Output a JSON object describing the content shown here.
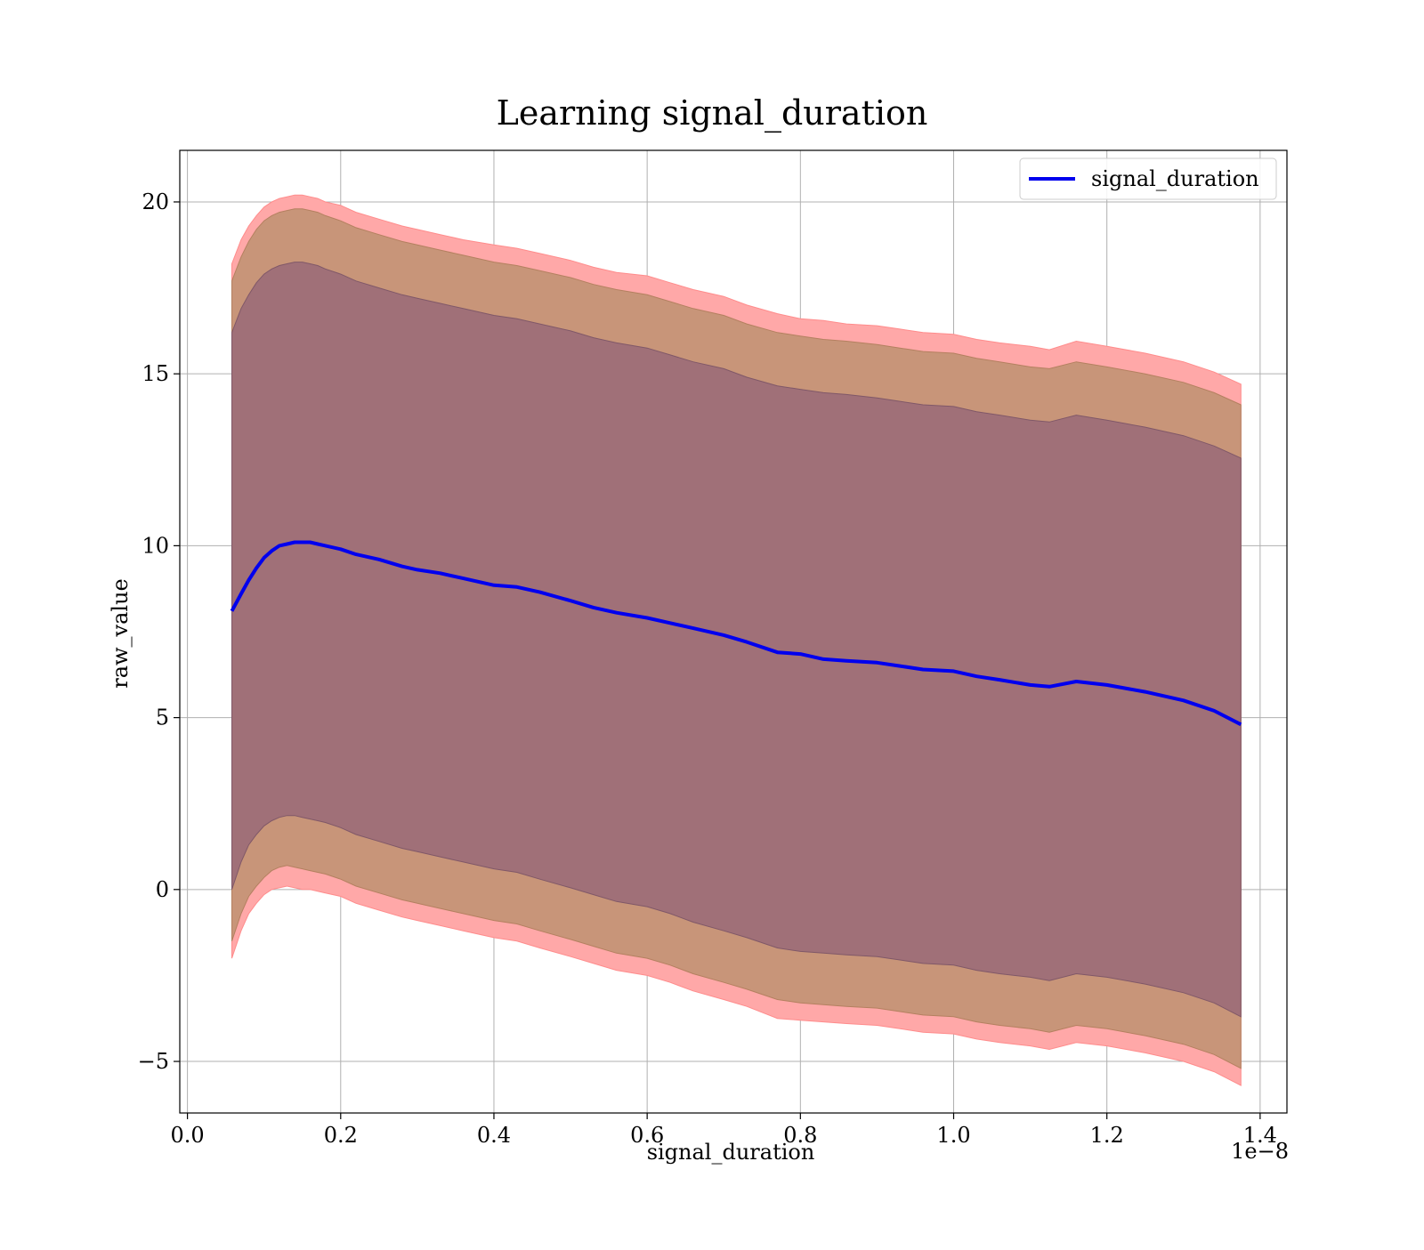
{
  "chart_data": {
    "type": "area",
    "title": "Learning signal_duration",
    "xlabel": "signal_duration",
    "ylabel": "raw_value",
    "x_offset_label": "1e−8",
    "x_scale": 1e-08,
    "xlim": [
      -0.01,
      1.435
    ],
    "ylim": [
      -6.5,
      21.5
    ],
    "grid": true,
    "legend": {
      "position": "top-right",
      "entries": [
        "signal_duration"
      ]
    },
    "x_ticks": [
      {
        "value": 0.0,
        "label": "0.0"
      },
      {
        "value": 0.2,
        "label": "0.2"
      },
      {
        "value": 0.4,
        "label": "0.4"
      },
      {
        "value": 0.6,
        "label": "0.6"
      },
      {
        "value": 0.8,
        "label": "0.8"
      },
      {
        "value": 1.0,
        "label": "1.0"
      },
      {
        "value": 1.2,
        "label": "1.2"
      },
      {
        "value": 1.4,
        "label": "1.4"
      }
    ],
    "y_ticks": [
      {
        "value": -5,
        "label": "−5"
      },
      {
        "value": 0,
        "label": "0"
      },
      {
        "value": 5,
        "label": "5"
      },
      {
        "value": 10,
        "label": "10"
      },
      {
        "value": 15,
        "label": "15"
      },
      {
        "value": 20,
        "label": "20"
      }
    ],
    "colors": {
      "line": "#0000ee",
      "outer_band": "#ffa8a8",
      "middle_band": "#c89579",
      "inner_band": "#a07078",
      "grid": "#b0b0b0"
    },
    "x": [
      0.058,
      0.07,
      0.08,
      0.09,
      0.1,
      0.11,
      0.12,
      0.13,
      0.14,
      0.15,
      0.16,
      0.17,
      0.18,
      0.2,
      0.22,
      0.25,
      0.28,
      0.3,
      0.33,
      0.36,
      0.4,
      0.43,
      0.46,
      0.5,
      0.53,
      0.56,
      0.6,
      0.63,
      0.66,
      0.7,
      0.73,
      0.77,
      0.8,
      0.83,
      0.86,
      0.9,
      0.93,
      0.96,
      1.0,
      1.03,
      1.06,
      1.1,
      1.125,
      1.16,
      1.2,
      1.25,
      1.3,
      1.34,
      1.375
    ],
    "series": [
      {
        "name": "signal_duration",
        "values": [
          8.1,
          8.6,
          9.0,
          9.35,
          9.65,
          9.85,
          10.0,
          10.05,
          10.1,
          10.1,
          10.1,
          10.05,
          10.0,
          9.9,
          9.75,
          9.6,
          9.4,
          9.3,
          9.2,
          9.05,
          8.85,
          8.8,
          8.65,
          8.4,
          8.2,
          8.05,
          7.9,
          7.75,
          7.6,
          7.4,
          7.2,
          6.9,
          6.85,
          6.7,
          6.65,
          6.6,
          6.5,
          6.4,
          6.35,
          6.2,
          6.1,
          5.95,
          5.9,
          6.05,
          5.95,
          5.75,
          5.5,
          5.2,
          4.8
        ]
      }
    ],
    "bands": [
      {
        "upper": [
          18.2,
          18.9,
          19.3,
          19.6,
          19.85,
          20.0,
          20.1,
          20.15,
          20.2,
          20.2,
          20.15,
          20.1,
          20.0,
          19.9,
          19.7,
          19.5,
          19.3,
          19.2,
          19.05,
          18.9,
          18.75,
          18.65,
          18.5,
          18.3,
          18.1,
          17.95,
          17.85,
          17.65,
          17.45,
          17.25,
          17.0,
          16.75,
          16.6,
          16.55,
          16.45,
          16.4,
          16.3,
          16.2,
          16.15,
          16.0,
          15.9,
          15.8,
          15.7,
          15.95,
          15.8,
          15.6,
          15.35,
          15.05,
          14.7
        ],
        "lower": [
          -2.0,
          -1.2,
          -0.7,
          -0.4,
          -0.15,
          0.0,
          0.05,
          0.1,
          0.05,
          0.0,
          0.0,
          -0.05,
          -0.1,
          -0.2,
          -0.4,
          -0.6,
          -0.8,
          -0.9,
          -1.05,
          -1.2,
          -1.4,
          -1.5,
          -1.7,
          -1.95,
          -2.15,
          -2.35,
          -2.5,
          -2.7,
          -2.95,
          -3.2,
          -3.4,
          -3.75,
          -3.8,
          -3.85,
          -3.9,
          -3.95,
          -4.05,
          -4.15,
          -4.2,
          -4.35,
          -4.45,
          -4.55,
          -4.65,
          -4.45,
          -4.55,
          -4.75,
          -5.0,
          -5.3,
          -5.7
        ]
      },
      {
        "upper": [
          17.7,
          18.4,
          18.85,
          19.2,
          19.45,
          19.6,
          19.7,
          19.75,
          19.8,
          19.8,
          19.75,
          19.7,
          19.6,
          19.45,
          19.25,
          19.05,
          18.85,
          18.75,
          18.6,
          18.45,
          18.25,
          18.15,
          18.0,
          17.8,
          17.6,
          17.45,
          17.3,
          17.1,
          16.9,
          16.7,
          16.45,
          16.2,
          16.1,
          16.0,
          15.95,
          15.85,
          15.75,
          15.65,
          15.6,
          15.45,
          15.35,
          15.2,
          15.15,
          15.35,
          15.2,
          15.0,
          14.75,
          14.45,
          14.1
        ],
        "lower": [
          -1.5,
          -0.7,
          -0.2,
          0.1,
          0.35,
          0.55,
          0.65,
          0.7,
          0.65,
          0.6,
          0.55,
          0.5,
          0.45,
          0.3,
          0.1,
          -0.1,
          -0.3,
          -0.4,
          -0.55,
          -0.7,
          -0.9,
          -1.0,
          -1.2,
          -1.45,
          -1.65,
          -1.85,
          -2.0,
          -2.2,
          -2.45,
          -2.7,
          -2.9,
          -3.2,
          -3.3,
          -3.35,
          -3.4,
          -3.45,
          -3.55,
          -3.65,
          -3.7,
          -3.85,
          -3.95,
          -4.05,
          -4.15,
          -3.95,
          -4.05,
          -4.25,
          -4.5,
          -4.8,
          -5.2
        ]
      },
      {
        "upper": [
          16.2,
          16.9,
          17.3,
          17.65,
          17.9,
          18.05,
          18.15,
          18.2,
          18.25,
          18.25,
          18.2,
          18.15,
          18.05,
          17.9,
          17.7,
          17.5,
          17.3,
          17.2,
          17.05,
          16.9,
          16.7,
          16.6,
          16.45,
          16.25,
          16.05,
          15.9,
          15.75,
          15.55,
          15.35,
          15.15,
          14.9,
          14.65,
          14.55,
          14.45,
          14.4,
          14.3,
          14.2,
          14.1,
          14.05,
          13.9,
          13.8,
          13.65,
          13.6,
          13.8,
          13.65,
          13.45,
          13.2,
          12.9,
          12.55
        ],
        "lower": [
          0.0,
          0.8,
          1.3,
          1.6,
          1.85,
          2.0,
          2.1,
          2.15,
          2.15,
          2.1,
          2.05,
          2.0,
          1.95,
          1.8,
          1.6,
          1.4,
          1.2,
          1.1,
          0.95,
          0.8,
          0.6,
          0.5,
          0.3,
          0.05,
          -0.15,
          -0.35,
          -0.5,
          -0.7,
          -0.95,
          -1.2,
          -1.4,
          -1.7,
          -1.8,
          -1.85,
          -1.9,
          -1.95,
          -2.05,
          -2.15,
          -2.2,
          -2.35,
          -2.45,
          -2.55,
          -2.65,
          -2.45,
          -2.55,
          -2.75,
          -3.0,
          -3.3,
          -3.7
        ]
      }
    ]
  }
}
